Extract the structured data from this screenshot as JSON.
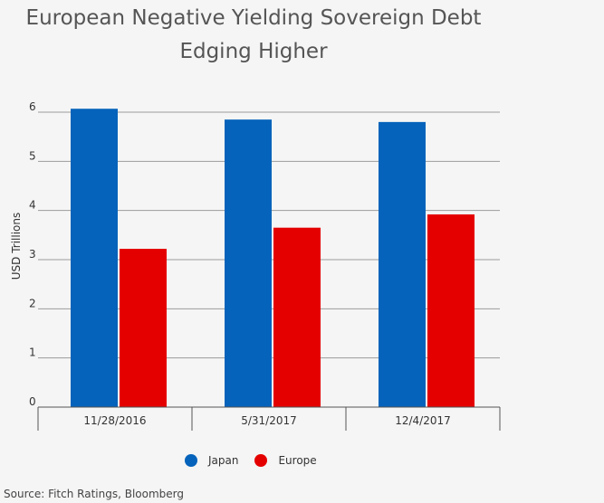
{
  "chart_data": {
    "type": "bar",
    "title_lines": [
      "European Negative Yielding Sovereign Debt",
      "Edging Higher"
    ],
    "ylabel": "USD Trillions",
    "xlabel": "",
    "ylim": [
      0,
      6
    ],
    "yticks": [
      0,
      1,
      2,
      3,
      4,
      5,
      6
    ],
    "categories": [
      "11/28/2016",
      "5/31/2017",
      "12/4/2017"
    ],
    "series": [
      {
        "name": "Japan",
        "color": "#0563bb",
        "values": [
          6.07,
          5.85,
          5.8
        ]
      },
      {
        "name": "Europe",
        "color": "#e50000",
        "values": [
          3.22,
          3.65,
          3.92
        ]
      }
    ],
    "legend_position": "bottom",
    "grid": true
  },
  "source": "Source: Fitch Ratings, Bloomberg"
}
